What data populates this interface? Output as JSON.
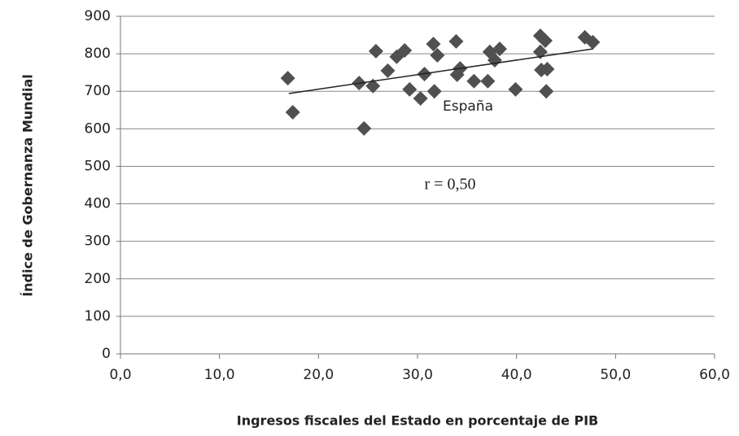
{
  "chart_data": {
    "type": "scatter",
    "x_label": "Ingresos fiscales del Estado en porcentaje de PIB",
    "y_label": "Índice de Gobernanza Mundial",
    "color": "#505050",
    "x": [
      16.9,
      17.4,
      24.1,
      24.6,
      25.5,
      25.8,
      27.0,
      27.9,
      28.7,
      29.2,
      30.3,
      30.7,
      31.6,
      32.0,
      31.7,
      33.9,
      34.0,
      34.3,
      35.7,
      37.1,
      37.3,
      37.8,
      38.3,
      39.9,
      42.4,
      42.4,
      42.5,
      42.9,
      43.1,
      43.0,
      46.9,
      47.7
    ],
    "values": [
      735,
      644,
      722,
      601,
      714,
      807,
      755,
      792,
      809,
      705,
      681,
      746,
      826,
      796,
      700,
      833,
      744,
      761,
      727,
      727,
      805,
      783,
      813,
      705,
      848,
      805,
      757,
      835,
      759,
      700,
      844,
      831
    ],
    "trendline": {
      "x": [
        17.0,
        47.7
      ],
      "y": [
        694,
        813
      ]
    },
    "annotations": [
      "España",
      "r = 0,50"
    ],
    "xlim": [
      0,
      60
    ],
    "xticks": [
      {
        "value": 0,
        "label": "0,0"
      },
      {
        "value": 10,
        "label": "10,0"
      },
      {
        "value": 20,
        "label": "20,0"
      },
      {
        "value": 30,
        "label": "30,0"
      },
      {
        "value": 40,
        "label": "40,0"
      },
      {
        "value": 50,
        "label": "50,0"
      },
      {
        "value": 60,
        "label": "60,0"
      }
    ],
    "ylim": [
      0,
      900
    ],
    "yticks": [
      0,
      100,
      200,
      300,
      400,
      500,
      600,
      700,
      800,
      900
    ],
    "grid": true
  }
}
